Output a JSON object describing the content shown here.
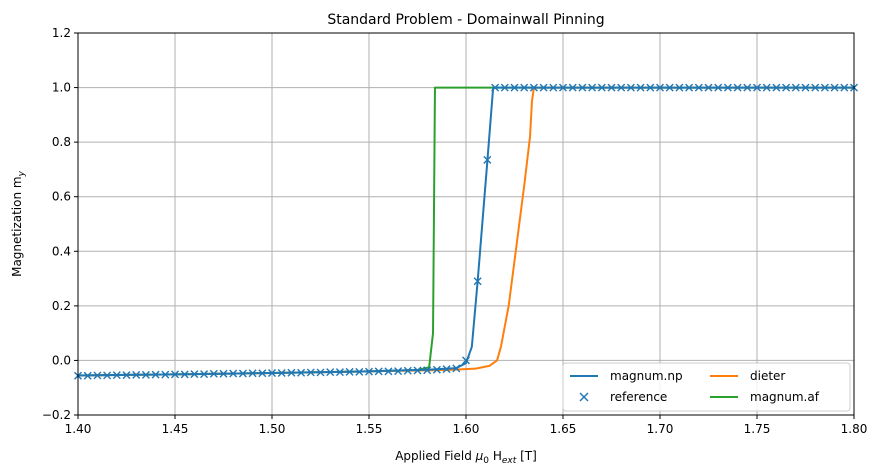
{
  "chart_data": {
    "type": "line",
    "title": "Standard Problem - Domainwall Pinning",
    "xlabel": "Applied Field μ0 Hext [T]",
    "ylabel": "Magnetization my",
    "xlim": [
      1.4,
      1.8
    ],
    "ylim": [
      -0.2,
      1.2
    ],
    "x_ticks": [
      "1.40",
      "1.45",
      "1.50",
      "1.55",
      "1.60",
      "1.65",
      "1.70",
      "1.75",
      "1.80"
    ],
    "y_ticks": [
      "−0.2",
      "0.0",
      "0.2",
      "0.4",
      "0.6",
      "0.8",
      "1.0",
      "1.2"
    ],
    "grid": true,
    "legend_placement": "lower-right",
    "series": [
      {
        "name": "magnum.np",
        "color": "#1f77b4",
        "style": "line",
        "points": [
          [
            1.4,
            -0.055
          ],
          [
            1.45,
            -0.051
          ],
          [
            1.5,
            -0.046
          ],
          [
            1.55,
            -0.04
          ],
          [
            1.58,
            -0.034
          ],
          [
            1.595,
            -0.028
          ],
          [
            1.6,
            -0.01
          ],
          [
            1.603,
            0.05
          ],
          [
            1.606,
            0.29
          ],
          [
            1.611,
            0.73
          ],
          [
            1.614,
            1.0
          ],
          [
            1.8,
            1.0
          ]
        ]
      },
      {
        "name": "reference",
        "color": "#1f77b4",
        "style": "marker-x",
        "x": [
          1.4,
          1.405,
          1.41,
          1.415,
          1.42,
          1.425,
          1.43,
          1.435,
          1.44,
          1.445,
          1.45,
          1.455,
          1.46,
          1.465,
          1.47,
          1.475,
          1.48,
          1.485,
          1.49,
          1.495,
          1.5,
          1.505,
          1.51,
          1.515,
          1.52,
          1.525,
          1.53,
          1.535,
          1.54,
          1.545,
          1.55,
          1.555,
          1.56,
          1.565,
          1.57,
          1.575,
          1.58,
          1.585,
          1.59,
          1.595,
          1.6,
          1.606,
          1.611,
          1.615,
          1.62,
          1.625,
          1.63,
          1.635,
          1.64,
          1.645,
          1.65,
          1.655,
          1.66,
          1.665,
          1.67,
          1.675,
          1.68,
          1.685,
          1.69,
          1.695,
          1.7,
          1.705,
          1.71,
          1.715,
          1.72,
          1.725,
          1.73,
          1.735,
          1.74,
          1.745,
          1.75,
          1.755,
          1.76,
          1.765,
          1.77,
          1.775,
          1.78,
          1.785,
          1.79,
          1.795,
          1.8
        ],
        "y": [
          -0.056,
          -0.056,
          -0.055,
          -0.055,
          -0.054,
          -0.054,
          -0.053,
          -0.053,
          -0.052,
          -0.052,
          -0.051,
          -0.051,
          -0.05,
          -0.05,
          -0.049,
          -0.049,
          -0.048,
          -0.048,
          -0.047,
          -0.047,
          -0.046,
          -0.046,
          -0.045,
          -0.045,
          -0.044,
          -0.044,
          -0.043,
          -0.043,
          -0.042,
          -0.042,
          -0.041,
          -0.04,
          -0.04,
          -0.039,
          -0.038,
          -0.037,
          -0.036,
          -0.034,
          -0.032,
          -0.029,
          0.0,
          0.29,
          0.735,
          1.0,
          1.0,
          1.0,
          1.0,
          1.0,
          1.0,
          1.0,
          1.0,
          1.0,
          1.0,
          1.0,
          1.0,
          1.0,
          1.0,
          1.0,
          1.0,
          1.0,
          1.0,
          1.0,
          1.0,
          1.0,
          1.0,
          1.0,
          1.0,
          1.0,
          1.0,
          1.0,
          1.0,
          1.0,
          1.0,
          1.0,
          1.0,
          1.0,
          1.0,
          1.0,
          1.0,
          1.0,
          1.0
        ]
      },
      {
        "name": "dieter",
        "color": "#ff7f0e",
        "style": "line",
        "points": [
          [
            1.4,
            -0.055
          ],
          [
            1.45,
            -0.051
          ],
          [
            1.5,
            -0.046
          ],
          [
            1.55,
            -0.04
          ],
          [
            1.59,
            -0.035
          ],
          [
            1.605,
            -0.03
          ],
          [
            1.612,
            -0.02
          ],
          [
            1.616,
            0.0
          ],
          [
            1.618,
            0.05
          ],
          [
            1.622,
            0.2
          ],
          [
            1.626,
            0.42
          ],
          [
            1.63,
            0.64
          ],
          [
            1.633,
            0.82
          ],
          [
            1.634,
            0.95
          ],
          [
            1.635,
            1.0
          ],
          [
            1.8,
            1.0
          ]
        ]
      },
      {
        "name": "magnum.af",
        "color": "#2ca02c",
        "style": "line",
        "points": [
          [
            1.4,
            -0.055
          ],
          [
            1.45,
            -0.051
          ],
          [
            1.5,
            -0.046
          ],
          [
            1.55,
            -0.04
          ],
          [
            1.575,
            -0.035
          ],
          [
            1.581,
            -0.025
          ],
          [
            1.583,
            0.1
          ],
          [
            1.584,
            1.0
          ],
          [
            1.8,
            1.0
          ]
        ]
      }
    ]
  }
}
